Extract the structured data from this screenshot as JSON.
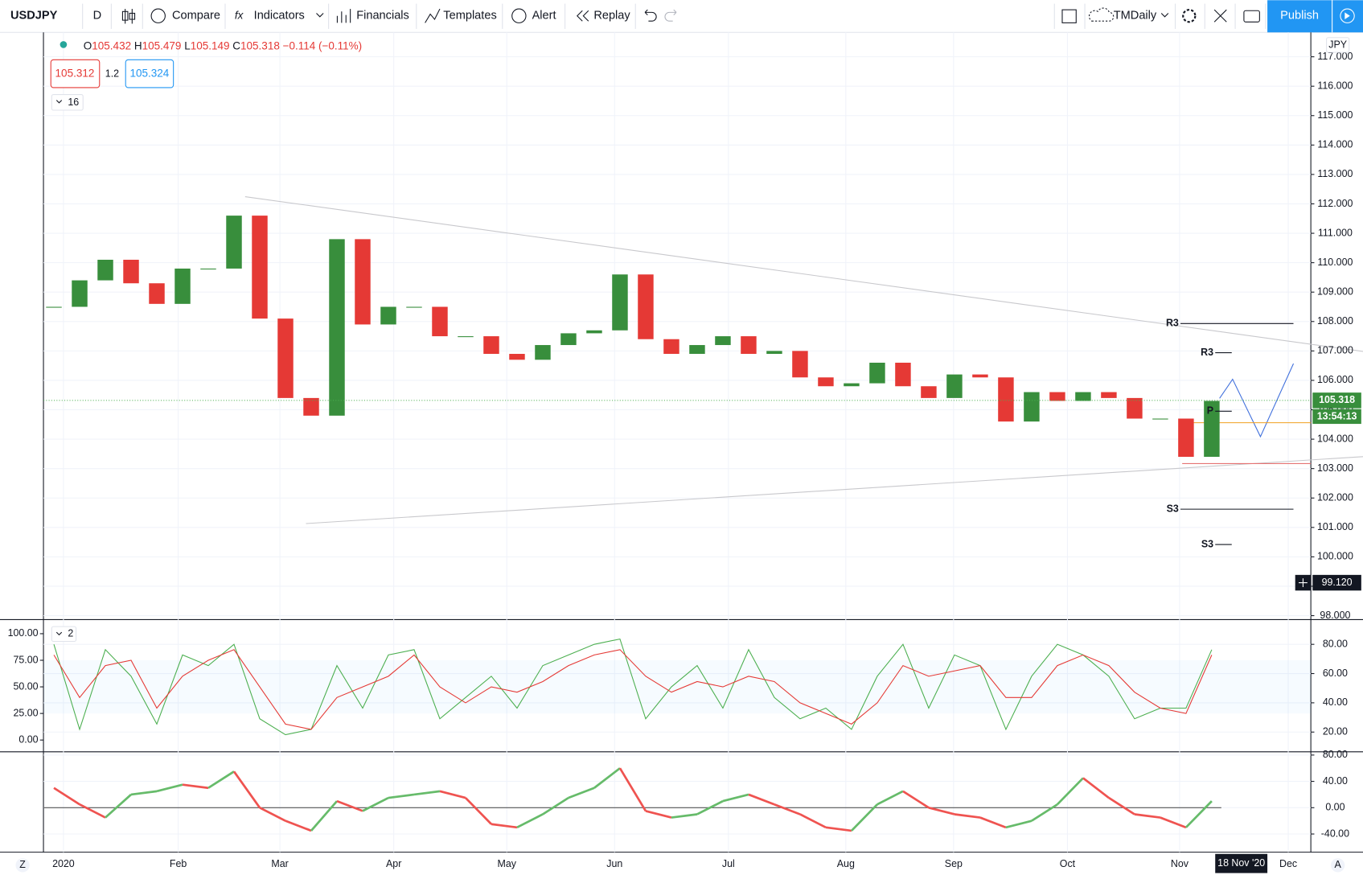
{
  "toolbar": {
    "symbol": "USDJPY",
    "interval": "D",
    "compare": "Compare",
    "indicators": "Indicators",
    "financials": "Financials",
    "templates": "Templates",
    "alert": "Alert",
    "replay": "Replay",
    "layout": "TMDaily",
    "publish": "Publish"
  },
  "legend": {
    "open_key": "O",
    "open": 105.432,
    "high_key": "H",
    "high": 105.479,
    "low_key": "L",
    "low": 105.149,
    "close_key": "C",
    "close": 105.318,
    "change": "−0.114 (−0.11%)"
  },
  "quote": {
    "bid": "105.312",
    "spread": "1.2",
    "ask": "105.324"
  },
  "collapse": "16",
  "study_count": "2",
  "currency": "JPY",
  "bottom_left": "Z",
  "bottom_right": "A",
  "chart_data": [
    {
      "type": "candlestick",
      "name": "USDJPY",
      "values": [
        108.5,
        109.4,
        110.1,
        109.3,
        108.6,
        109.8,
        109.8,
        111.6,
        108.1,
        105.4,
        104.8,
        110.8,
        107.9,
        108.5,
        108.5,
        107.5,
        107.5,
        106.9,
        106.7,
        107.2,
        107.6,
        107.7,
        109.6,
        107.4,
        106.9,
        107.2,
        107.5,
        106.9,
        107.0,
        106.1,
        105.8,
        105.9,
        106.6,
        105.8,
        105.4,
        106.2,
        106.1,
        104.6,
        105.6,
        105.3,
        105.6,
        105.4,
        104.7,
        104.7,
        103.4,
        105.3
      ],
      "color_up": "#388e3c",
      "color_down": "#e53935",
      "ylim": [
        97.88,
        117.83
      ],
      "yticks": [
        {
          "value": 98,
          "label": "98.000"
        },
        {
          "value": 99,
          "label": "99.000"
        },
        {
          "value": 100,
          "label": "100.000"
        },
        {
          "value": 101,
          "label": "101.000"
        },
        {
          "value": 102,
          "label": "102.000"
        },
        {
          "value": 103,
          "label": "103.000"
        },
        {
          "value": 104,
          "label": "104.000"
        },
        {
          "value": 105,
          "label": "105.000"
        },
        {
          "value": 106,
          "label": "106.000"
        },
        {
          "value": 107,
          "label": "107.000"
        },
        {
          "value": 108,
          "label": "108.000"
        },
        {
          "value": 109,
          "label": "109.000"
        },
        {
          "value": 110,
          "label": "110.000"
        },
        {
          "value": 111,
          "label": "111.000"
        },
        {
          "value": 112,
          "label": "112.000"
        },
        {
          "value": 113,
          "label": "113.000"
        },
        {
          "value": 114,
          "label": "114.000"
        },
        {
          "value": 115,
          "label": "115.000"
        },
        {
          "value": 116,
          "label": "116.000"
        },
        {
          "value": 117,
          "label": "117.000"
        }
      ],
      "grid": true,
      "xlabels": [
        "2020",
        "Feb",
        "Mar",
        "Apr",
        "May",
        "Jun",
        "Jul",
        "Aug",
        "Sep",
        "Oct",
        "Nov",
        "Dec"
      ],
      "last_price": {
        "value": 105.318,
        "label": "105.318"
      },
      "countdown": "13:54:13",
      "crosshair": {
        "value": 99.12,
        "label": "99.120"
      },
      "crosshair_date": "18 Nov '20",
      "levels": [
        {
          "label": "R3",
          "value": 107.93
        },
        {
          "label": "R3",
          "value": 106.94
        },
        {
          "label": "P",
          "value": 104.95
        },
        {
          "label": "S3",
          "value": 101.62
        },
        {
          "label": "S3",
          "value": 100.42
        }
      ]
    },
    {
      "type": "line",
      "name": "stochastic",
      "series": [
        {
          "name": "%K",
          "color": "#4caf50",
          "values": [
            90,
            10,
            85,
            60,
            15,
            80,
            70,
            90,
            20,
            5,
            10,
            70,
            30,
            80,
            85,
            20,
            40,
            60,
            30,
            70,
            80,
            90,
            95,
            20,
            50,
            70,
            30,
            85,
            40,
            20,
            30,
            10,
            60,
            90,
            30,
            80,
            70,
            10,
            60,
            90,
            80,
            60,
            20,
            30,
            30,
            85
          ]
        },
        {
          "name": "%D",
          "color": "#e53935",
          "values": [
            80,
            40,
            70,
            75,
            30,
            60,
            75,
            85,
            50,
            15,
            10,
            40,
            50,
            60,
            80,
            50,
            35,
            50,
            45,
            55,
            70,
            80,
            85,
            60,
            45,
            55,
            50,
            60,
            55,
            35,
            25,
            15,
            35,
            70,
            60,
            65,
            70,
            40,
            40,
            70,
            80,
            70,
            45,
            30,
            25,
            80
          ]
        }
      ],
      "ylim": [
        -9,
        112
      ],
      "yticks": [
        {
          "value": 0,
          "label": "0.00"
        },
        {
          "value": 25,
          "label": "25.00"
        },
        {
          "value": 50,
          "label": "50.00"
        },
        {
          "value": 75,
          "label": "75.00"
        },
        {
          "value": 100,
          "label": "100.00"
        }
      ],
      "y2lim": [
        8,
        96
      ],
      "y2ticks": [
        {
          "value": 20,
          "label": "20.00"
        },
        {
          "value": 40,
          "label": "40.00"
        },
        {
          "value": 60,
          "label": "60.00"
        },
        {
          "value": 80,
          "label": "80.00"
        }
      ]
    },
    {
      "type": "line",
      "name": "oscillator",
      "series": [
        {
          "name": "oscillator",
          "color_up": "#66bb6a",
          "color_down": "#ef5350",
          "values": [
            30,
            5,
            -15,
            20,
            25,
            35,
            30,
            55,
            0,
            -20,
            -35,
            10,
            -5,
            15,
            20,
            25,
            15,
            -25,
            -30,
            -10,
            15,
            30,
            60,
            -5,
            -15,
            -10,
            10,
            20,
            5,
            -10,
            -30,
            -35,
            5,
            25,
            0,
            -10,
            -15,
            -30,
            -20,
            5,
            45,
            15,
            -10,
            -15,
            -30,
            10
          ]
        }
      ],
      "ylim": [
        -65,
        83
      ],
      "yticks": [
        {
          "value": -40,
          "label": "-40.00"
        },
        {
          "value": 0,
          "label": "0.00"
        },
        {
          "value": 40,
          "label": "40.00"
        },
        {
          "value": 80,
          "label": "80.00"
        }
      ]
    }
  ]
}
